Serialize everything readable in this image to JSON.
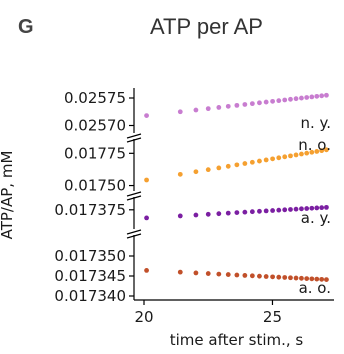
{
  "panel": {
    "letter": "G"
  },
  "chart_data": {
    "type": "scatter",
    "title": "ATP per AP",
    "xlabel": "time after stim., s",
    "ylabel": "ATP/AP, mM",
    "xlim": [
      20,
      27.2
    ],
    "x_ticks": [
      {
        "value": 20,
        "label": "20"
      },
      {
        "value": 25,
        "label": "25"
      }
    ],
    "broken_y_axis": true,
    "segments": [
      {
        "ylim": [
          0.02569,
          0.02577
        ],
        "ticks": [
          {
            "value": 0.02575,
            "label": "0.02575"
          },
          {
            "value": 0.0257,
            "label": "0.02570"
          }
        ]
      },
      {
        "ylim": [
          0.01745,
          0.01783
        ],
        "ticks": [
          {
            "value": 0.01775,
            "label": "0.01775"
          },
          {
            "value": 0.0175,
            "label": "0.01750"
          }
        ]
      },
      {
        "ylim": [
          0.017369,
          0.017379
        ],
        "ticks": [
          {
            "value": 0.017375,
            "label": "0.017375"
          }
        ]
      },
      {
        "ylim": [
          0.01734,
          0.01735
        ],
        "ticks": [
          {
            "value": 0.01735,
            "label": "0.017350"
          },
          {
            "value": 0.017345,
            "label": "0.017345"
          },
          {
            "value": 0.01734,
            "label": "0.017340"
          }
        ]
      }
    ],
    "series": [
      {
        "name": "n. y.",
        "segment": 0,
        "color": "#c87dd0",
        "x_start": 20.1,
        "x_end": 27.1,
        "y_start": 0.025718,
        "y_end": 0.025755
      },
      {
        "name": "n. o.",
        "segment": 1,
        "color": "#f5a030",
        "x_start": 20.1,
        "x_end": 27.1,
        "y_start": 0.017543,
        "y_end": 0.017777
      },
      {
        "name": "a. y.",
        "segment": 2,
        "color": "#7b1fa2",
        "x_start": 20.1,
        "x_end": 27.1,
        "y_start": 0.017372,
        "y_end": 0.0173759
      },
      {
        "name": "a. o.",
        "segment": 3,
        "color": "#c1502a",
        "x_start": 20.1,
        "x_end": 27.1,
        "y_start": 0.0173464,
        "y_end": 0.0173441
      }
    ]
  }
}
